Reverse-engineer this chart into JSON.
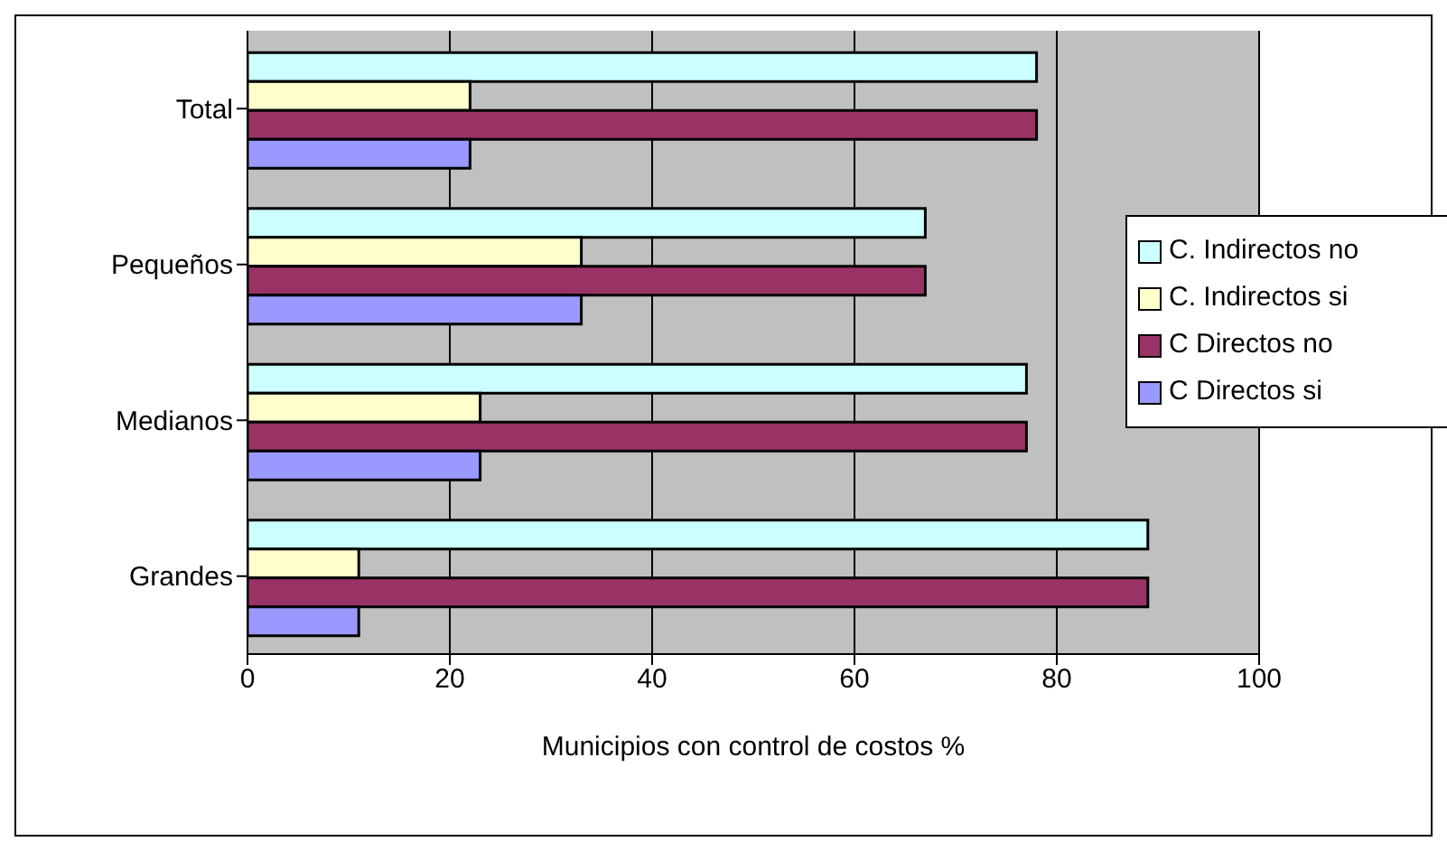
{
  "chart_data": {
    "type": "bar",
    "orientation": "horizontal",
    "xlabel": "Municipios con control de costos %",
    "categories": [
      "Total",
      "Pequeños",
      "Medianos",
      "Grandes"
    ],
    "series": [
      {
        "name": "C. Indirectos no",
        "color": "#ccffff",
        "values": [
          78,
          67,
          77,
          89
        ]
      },
      {
        "name": "C. Indirectos si",
        "color": "#ffffcc",
        "values": [
          22,
          33,
          23,
          11
        ]
      },
      {
        "name": "C Directos no",
        "color": "#993366",
        "values": [
          78,
          67,
          77,
          89
        ]
      },
      {
        "name": "C Directos si",
        "color": "#9999ff",
        "values": [
          22,
          33,
          23,
          11
        ]
      }
    ],
    "xlim": [
      0,
      100
    ],
    "xticks": [
      0,
      20,
      40,
      60,
      80,
      100
    ],
    "grid": "x",
    "legend": "right"
  }
}
